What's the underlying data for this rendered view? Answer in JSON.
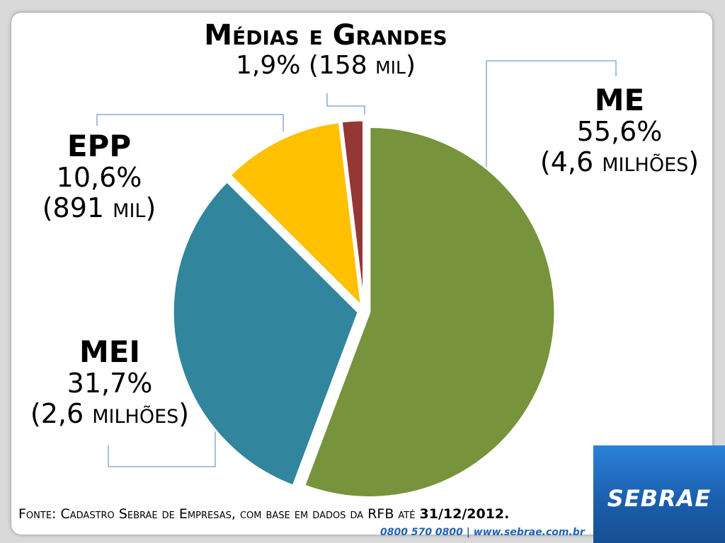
{
  "colors": {
    "me": "#77933c",
    "mei": "#31859c",
    "epp": "#ffc000",
    "medias": "#953735",
    "leader": "#4f81bd",
    "brand": "#1f63b4"
  },
  "labels": {
    "medias": {
      "name": "Médias e Grandes",
      "pct": "1,9%",
      "count_num": "(158",
      "count_unit": "mil",
      "count_close": ")"
    },
    "me": {
      "name": "ME",
      "pct": "55,6%",
      "count_num": "(4,6",
      "count_unit": "milhões",
      "count_close": ")"
    },
    "epp": {
      "name": "EPP",
      "pct": "10,6%",
      "count_num": "(891",
      "count_unit": "mil",
      "count_close": ")"
    },
    "mei": {
      "name": "MEI",
      "pct": "31,7%",
      "count_num": "(2,6",
      "count_unit": "milhões",
      "count_close": ")"
    }
  },
  "source": {
    "text": "Fonte: Cadastro Sebrae de Empresas, com base em dados da RFB até",
    "date": "31/12/2012."
  },
  "footer": {
    "contact": "0800 570 0800  |  www.sebrae.com.br"
  },
  "logo": {
    "text": "SEBRAE"
  },
  "chart_data": {
    "type": "pie",
    "categories": [
      "ME",
      "MEI",
      "EPP",
      "Médias e Grandes"
    ],
    "values": [
      55.6,
      31.7,
      10.6,
      1.9
    ],
    "counts": [
      "4,6 milhões",
      "2,6 milhões",
      "891 mil",
      "158 mil"
    ],
    "unit": "%",
    "start": "top, clockwise",
    "exploded": true
  }
}
